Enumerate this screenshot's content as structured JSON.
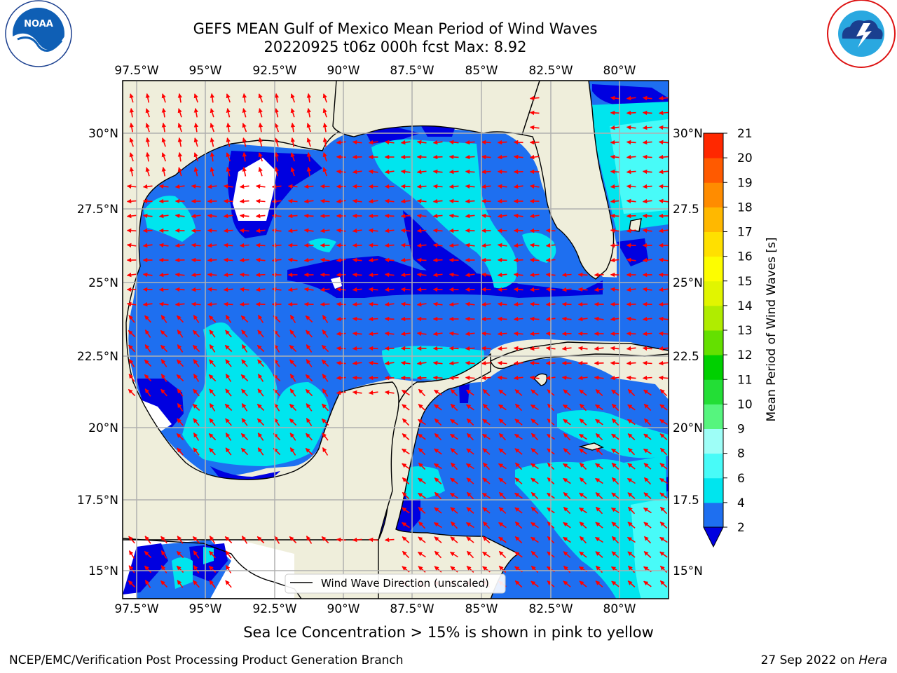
{
  "header": {
    "title": "GEFS MEAN Gulf of Mexico Mean Period of Wind Waves",
    "subtitle": "20220925 t06z 000h fcst   Max: 8.92"
  },
  "logos": {
    "left": "NOAA",
    "left_ring": "NATIONAL OCEANIC AND ATMOSPHERIC ADMINISTRATION · U.S. DEPARTMENT OF COMMERCE",
    "right_ring": "NATIONAL WEATHER SERVICE"
  },
  "chart_data": {
    "type": "heatmap",
    "title": "GEFS MEAN Gulf of Mexico Mean Period of Wind Waves",
    "subtitle": "20220925 t06z 000h fcst   Max: 8.92",
    "max_value": 8.92,
    "x_ticks": [
      "97.5°W",
      "95°W",
      "92.5°W",
      "90°W",
      "87.5°W",
      "85°W",
      "82.5°W",
      "80°W"
    ],
    "y_ticks_left": [
      "30°N",
      "27.5°N",
      "25°N",
      "22.5°N",
      "20°N",
      "17.5°N",
      "15°N"
    ],
    "y_ticks_right": [
      "30°N",
      "27.5",
      "25°N",
      "22.5",
      "20°N",
      "17.5",
      "15°N"
    ],
    "x_range_deg_w": [
      98,
      78.2
    ],
    "y_range_deg_n": [
      14,
      31.7
    ],
    "grid": true,
    "legend": {
      "label": "Wind Wave Direction (unscaled)",
      "placement": "bottom-right"
    },
    "colorbar": {
      "label": "Mean Period of Wind Waves [s]",
      "levels": [
        2,
        4,
        6,
        8,
        9,
        10,
        11,
        12,
        13,
        14,
        15,
        16,
        17,
        18,
        19,
        20,
        21
      ],
      "colors": [
        "#0000e0",
        "#1e6ff0",
        "#00e5ee",
        "#48fbf8",
        "#9efef7",
        "#56f57e",
        "#23de36",
        "#00d000",
        "#64e000",
        "#b0ec00",
        "#e1f500",
        "#fdfd00",
        "#ffe000",
        "#ffb800",
        "#ff8c00",
        "#ff5a00",
        "#ff2800",
        "#ee0000"
      ],
      "extend": "min"
    },
    "dominant_direction": "westward",
    "land_color": "#efeedb",
    "arrow_color": "#ff0000"
  },
  "footnote": "Sea Ice Concentration > 15% is shown in pink to yellow",
  "footer": {
    "org": "NCEP/EMC/Verification Post Processing Product Generation Branch",
    "date": "27 Sep 2022 on",
    "host": "Hera"
  }
}
